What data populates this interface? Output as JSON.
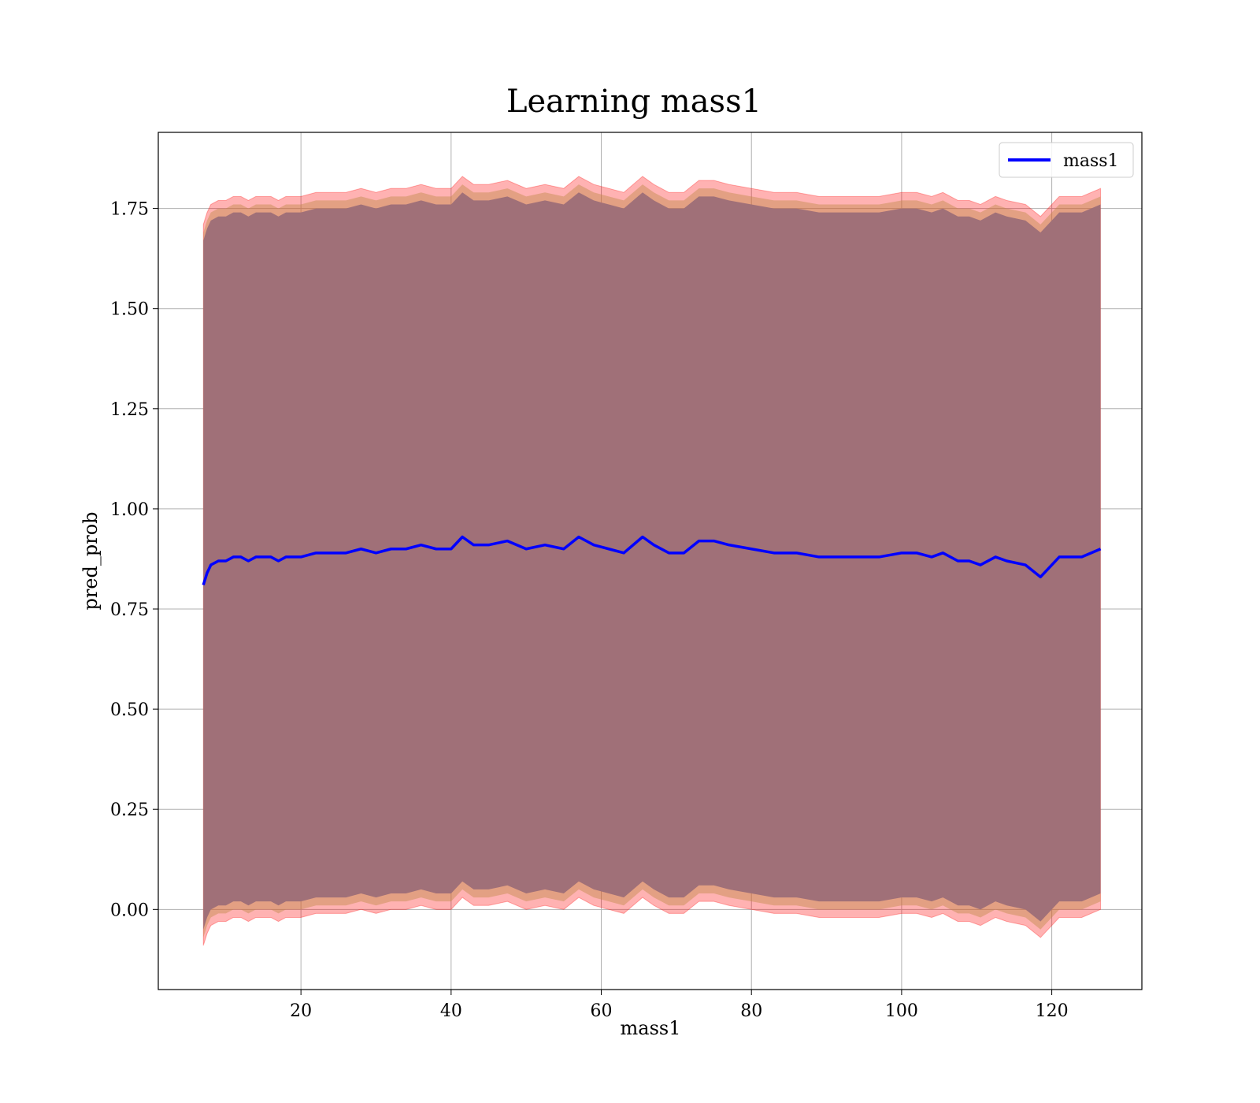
{
  "chart_data": {
    "type": "line",
    "title": "Learning mass1",
    "xlabel": "mass1",
    "ylabel": "pred_prob",
    "xlim": [
      1,
      132
    ],
    "ylim": [
      -0.2,
      1.94
    ],
    "xticks": [
      20,
      40,
      60,
      80,
      100,
      120
    ],
    "yticks": [
      0.0,
      0.25,
      0.5,
      0.75,
      1.0,
      1.25,
      1.5,
      1.75
    ],
    "ytick_labels": [
      "0.00",
      "0.25",
      "0.50",
      "0.75",
      "1.00",
      "1.25",
      "1.50",
      "1.75"
    ],
    "grid": true,
    "legend_position": "top-right",
    "colors": {
      "line": "#0000ff",
      "band_outer": "#ff0000",
      "band_inner": "#1f4e79",
      "band_mid": "#c08a4a",
      "grid": "#b0b0b0"
    },
    "series": [
      {
        "name": "mass1",
        "x": [
          7,
          7.5,
          8,
          9,
          10,
          11,
          12,
          13,
          14,
          15,
          16,
          17,
          18,
          19,
          20,
          22,
          24,
          26,
          28,
          30,
          32,
          34,
          36,
          38,
          40,
          41.5,
          43,
          45,
          47.5,
          50,
          52.5,
          55,
          57,
          59,
          61,
          63,
          65.5,
          67,
          69,
          71,
          73,
          75,
          77,
          80,
          83,
          86,
          89,
          92,
          95,
          97,
          100,
          102,
          104,
          105.5,
          107.5,
          109,
          110.5,
          112.5,
          114,
          116.5,
          118.5,
          121,
          124,
          126.5
        ],
        "y": [
          0.81,
          0.84,
          0.86,
          0.87,
          0.87,
          0.88,
          0.88,
          0.87,
          0.88,
          0.88,
          0.88,
          0.87,
          0.88,
          0.88,
          0.88,
          0.89,
          0.89,
          0.89,
          0.9,
          0.89,
          0.9,
          0.9,
          0.91,
          0.9,
          0.9,
          0.93,
          0.91,
          0.91,
          0.92,
          0.9,
          0.91,
          0.9,
          0.93,
          0.91,
          0.9,
          0.89,
          0.93,
          0.91,
          0.89,
          0.89,
          0.92,
          0.92,
          0.91,
          0.9,
          0.89,
          0.89,
          0.88,
          0.88,
          0.88,
          0.88,
          0.89,
          0.89,
          0.88,
          0.89,
          0.87,
          0.87,
          0.86,
          0.88,
          0.87,
          0.86,
          0.83,
          0.88,
          0.88,
          0.9
        ],
        "band_halfwidths": {
          "outer": 0.9,
          "mid": 0.88,
          "inner": 0.86
        }
      }
    ]
  }
}
